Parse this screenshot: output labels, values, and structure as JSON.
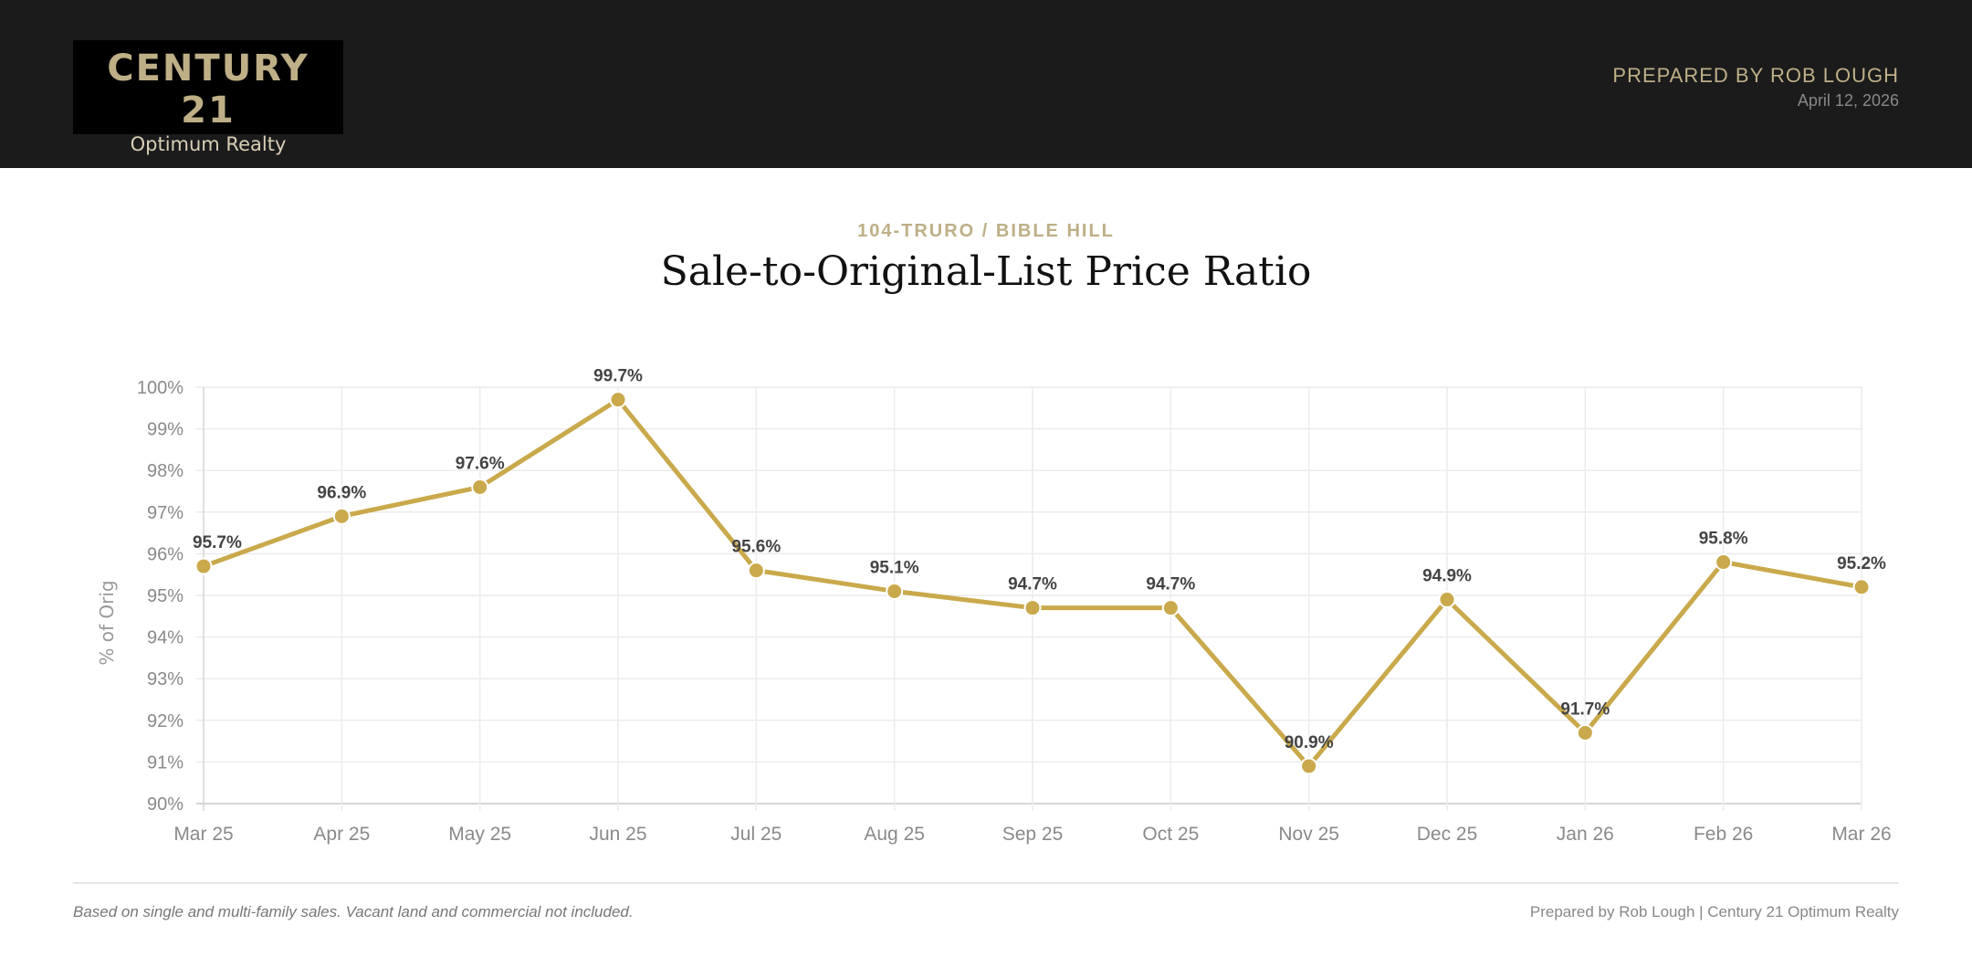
{
  "header": {
    "logo_brand": "CENTURY 21",
    "logo_sub": "Optimum Realty",
    "prepared_by": "PREPARED BY ROB LOUGH",
    "date": "April 12, 2026"
  },
  "colors": {
    "accent": "#c9a94b",
    "brand_gold": "#beaf87",
    "header_bg": "#1b1b1b"
  },
  "chart_data": {
    "type": "line",
    "subtitle": "104-TRURO / BIBLE HILL",
    "title": "Sale-to-Original-List Price Ratio",
    "ylabel": "% of Orig",
    "xlabel": "",
    "ylim": [
      90,
      100
    ],
    "y_ticks": [
      "90%",
      "91%",
      "92%",
      "93%",
      "94%",
      "95%",
      "96%",
      "97%",
      "98%",
      "99%",
      "100%"
    ],
    "grid": true,
    "categories": [
      "Mar 25",
      "Apr 25",
      "May 25",
      "Jun 25",
      "Jul 25",
      "Aug 25",
      "Sep 25",
      "Oct 25",
      "Nov 25",
      "Dec 25",
      "Jan 26",
      "Feb 26",
      "Mar 26"
    ],
    "values": [
      95.7,
      96.9,
      97.6,
      99.7,
      95.6,
      95.1,
      94.7,
      94.7,
      90.9,
      94.9,
      91.7,
      95.8,
      95.2
    ],
    "data_labels": [
      "95.7%",
      "96.9%",
      "97.6%",
      "99.7%",
      "95.6%",
      "95.1%",
      "94.7%",
      "94.7%",
      "90.9%",
      "94.9%",
      "91.7%",
      "95.8%",
      "95.2%"
    ]
  },
  "footer": {
    "note": "Based on single and multi-family sales. Vacant land and commercial not included.",
    "credit": "Prepared by Rob Lough | Century 21 Optimum Realty"
  }
}
